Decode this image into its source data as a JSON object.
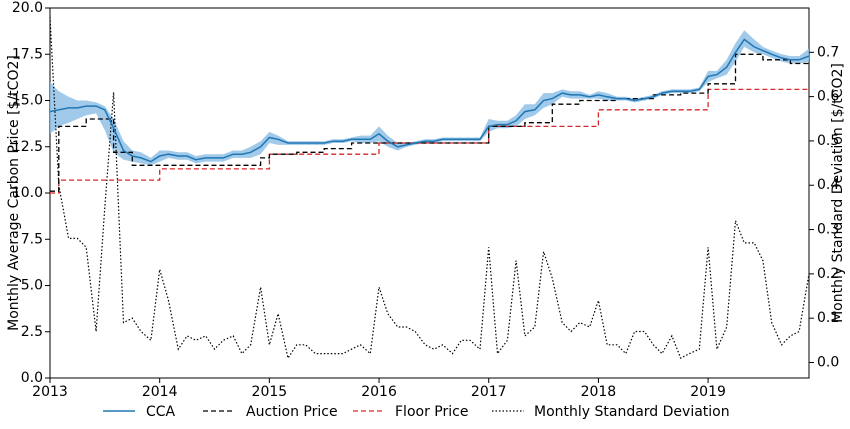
{
  "chart_data": {
    "type": "line",
    "left_axis": {
      "label": "Monthly Average Carbon Price [$/tCO2]",
      "ylim": [
        0,
        20
      ],
      "ticks": [
        0.0,
        2.5,
        5.0,
        7.5,
        10.0,
        12.5,
        15.0,
        17.5,
        20.0
      ],
      "tick_labels": [
        "0.0",
        "2.5",
        "5.0",
        "7.5",
        "10.0",
        "12.5",
        "15.0",
        "17.5",
        "20.0"
      ]
    },
    "right_axis": {
      "label": "Monthly Standard Deviation [$/tCO2]",
      "ylim": [
        -0.035,
        0.8
      ],
      "ticks": [
        0.0,
        0.1,
        0.2,
        0.3,
        0.4,
        0.5,
        0.6,
        0.7
      ],
      "tick_labels": [
        "0.0",
        "0.1",
        "0.2",
        "0.3",
        "0.4",
        "0.5",
        "0.6",
        "0.7"
      ]
    },
    "x_axis": {
      "xlim": [
        2013.0,
        2019.92
      ],
      "ticks": [
        2013,
        2014,
        2015,
        2016,
        2017,
        2018,
        2019
      ],
      "tick_labels": [
        "2013",
        "2014",
        "2015",
        "2016",
        "2017",
        "2018",
        "2019"
      ]
    },
    "grid": false,
    "legend_position": "bottom, outside plot",
    "colors": {
      "cca": "#1f77b4",
      "cca_band": "#8fbfe6",
      "auction": "#000000",
      "floor": "#d62728",
      "stddev": "#000000"
    },
    "series": [
      {
        "name": "CCA",
        "axis": "left",
        "style": "solid",
        "x": [
          2013.0,
          2013.08,
          2013.17,
          2013.25,
          2013.33,
          2013.42,
          2013.5,
          2013.58,
          2013.67,
          2013.75,
          2013.83,
          2013.92,
          2014.0,
          2014.08,
          2014.17,
          2014.25,
          2014.33,
          2014.42,
          2014.5,
          2014.58,
          2014.67,
          2014.75,
          2014.83,
          2014.92,
          2015.0,
          2015.08,
          2015.17,
          2015.25,
          2015.33,
          2015.42,
          2015.5,
          2015.58,
          2015.67,
          2015.75,
          2015.83,
          2015.92,
          2016.0,
          2016.08,
          2016.17,
          2016.25,
          2016.33,
          2016.42,
          2016.5,
          2016.58,
          2016.67,
          2016.75,
          2016.83,
          2016.92,
          2017.0,
          2017.08,
          2017.17,
          2017.25,
          2017.33,
          2017.42,
          2017.5,
          2017.58,
          2017.67,
          2017.75,
          2017.83,
          2017.92,
          2018.0,
          2018.08,
          2018.17,
          2018.25,
          2018.33,
          2018.42,
          2018.5,
          2018.58,
          2018.67,
          2018.75,
          2018.83,
          2018.92,
          2019.0,
          2019.08,
          2019.17,
          2019.25,
          2019.33,
          2019.42,
          2019.5,
          2019.58,
          2019.67,
          2019.75,
          2019.83,
          2019.92
        ],
        "values": [
          14.4,
          14.5,
          14.6,
          14.6,
          14.7,
          14.7,
          14.5,
          13.5,
          12.3,
          12.0,
          11.9,
          11.7,
          12.0,
          12.1,
          12.0,
          12.0,
          11.8,
          11.9,
          11.9,
          11.9,
          12.1,
          12.1,
          12.2,
          12.5,
          13.0,
          12.9,
          12.7,
          12.7,
          12.7,
          12.7,
          12.7,
          12.8,
          12.8,
          12.9,
          12.9,
          12.9,
          13.2,
          12.8,
          12.5,
          12.6,
          12.7,
          12.8,
          12.8,
          12.9,
          12.9,
          12.9,
          12.9,
          12.9,
          13.6,
          13.7,
          13.7,
          13.9,
          14.4,
          14.5,
          15.0,
          15.1,
          15.4,
          15.3,
          15.3,
          15.2,
          15.3,
          15.2,
          15.1,
          15.1,
          15.0,
          15.1,
          15.2,
          15.4,
          15.5,
          15.5,
          15.5,
          15.6,
          16.3,
          16.4,
          16.8,
          17.6,
          18.3,
          17.9,
          17.7,
          17.5,
          17.3,
          17.2,
          17.2,
          17.4
        ]
      },
      {
        "name": "Auction Price",
        "axis": "left",
        "style": "dashed",
        "x": [
          2013.0,
          2013.08,
          2013.17,
          2013.25,
          2013.33,
          2013.42,
          2013.5,
          2013.58,
          2013.67,
          2013.75,
          2013.83,
          2013.92,
          2014.0,
          2014.08,
          2014.17,
          2014.25,
          2014.33,
          2014.42,
          2014.5,
          2014.58,
          2014.67,
          2014.75,
          2014.83,
          2014.92,
          2015.0,
          2015.08,
          2015.17,
          2015.25,
          2015.33,
          2015.42,
          2015.5,
          2015.58,
          2015.67,
          2015.75,
          2015.83,
          2015.92,
          2016.0,
          2016.08,
          2016.17,
          2016.25,
          2016.33,
          2016.42,
          2016.5,
          2016.58,
          2016.67,
          2016.75,
          2016.83,
          2016.92,
          2017.0,
          2017.08,
          2017.17,
          2017.25,
          2017.33,
          2017.42,
          2017.5,
          2017.58,
          2017.67,
          2017.75,
          2017.83,
          2017.92,
          2018.0,
          2018.08,
          2018.17,
          2018.25,
          2018.33,
          2018.42,
          2018.5,
          2018.58,
          2018.67,
          2018.75,
          2018.83,
          2018.92,
          2019.0,
          2019.08,
          2019.17,
          2019.25,
          2019.33,
          2019.42,
          2019.5,
          2019.58,
          2019.67,
          2019.75,
          2019.83,
          2019.92
        ],
        "values": [
          10.1,
          13.6,
          13.6,
          13.6,
          14.0,
          14.0,
          14.0,
          12.2,
          12.2,
          11.5,
          11.5,
          11.5,
          11.5,
          11.5,
          11.5,
          11.5,
          11.5,
          11.5,
          11.5,
          11.5,
          11.5,
          11.5,
          11.5,
          11.9,
          12.1,
          12.1,
          12.1,
          12.2,
          12.2,
          12.2,
          12.4,
          12.4,
          12.4,
          12.7,
          12.7,
          12.7,
          12.7,
          12.7,
          12.7,
          12.7,
          12.7,
          12.7,
          12.7,
          12.7,
          12.7,
          12.7,
          12.7,
          12.7,
          13.6,
          13.6,
          13.6,
          13.6,
          13.8,
          13.8,
          13.8,
          14.8,
          14.8,
          14.8,
          15.0,
          15.0,
          15.0,
          15.0,
          15.1,
          15.1,
          15.1,
          15.1,
          15.3,
          15.3,
          15.3,
          15.4,
          15.4,
          15.4,
          15.9,
          15.9,
          15.9,
          17.5,
          17.5,
          17.5,
          17.2,
          17.2,
          17.2,
          17.0,
          17.0,
          17.0
        ]
      },
      {
        "name": "Floor Price",
        "axis": "left",
        "style": "dashed",
        "x": [
          2013.0,
          2013.08,
          2013.17,
          2013.25,
          2013.33,
          2013.42,
          2013.5,
          2013.58,
          2013.67,
          2013.75,
          2013.83,
          2013.92,
          2014.0,
          2014.08,
          2014.17,
          2014.25,
          2014.33,
          2014.42,
          2014.5,
          2014.58,
          2014.67,
          2014.75,
          2014.83,
          2014.92,
          2015.0,
          2015.08,
          2015.17,
          2015.25,
          2015.33,
          2015.42,
          2015.5,
          2015.58,
          2015.67,
          2015.75,
          2015.83,
          2015.92,
          2016.0,
          2016.08,
          2016.17,
          2016.25,
          2016.33,
          2016.42,
          2016.5,
          2016.58,
          2016.67,
          2016.75,
          2016.83,
          2016.92,
          2017.0,
          2017.08,
          2017.17,
          2017.25,
          2017.33,
          2017.42,
          2017.5,
          2017.58,
          2017.67,
          2017.75,
          2017.83,
          2017.92,
          2018.0,
          2018.08,
          2018.17,
          2018.25,
          2018.33,
          2018.42,
          2018.5,
          2018.58,
          2018.67,
          2018.75,
          2018.83,
          2018.92,
          2019.0,
          2019.08,
          2019.17,
          2019.25,
          2019.33,
          2019.42,
          2019.5,
          2019.58,
          2019.67,
          2019.75,
          2019.83,
          2019.92
        ],
        "values": [
          10.0,
          10.7,
          10.7,
          10.7,
          10.7,
          10.7,
          10.7,
          10.7,
          10.7,
          10.7,
          10.7,
          10.7,
          11.3,
          11.3,
          11.3,
          11.3,
          11.3,
          11.3,
          11.3,
          11.3,
          11.3,
          11.3,
          11.3,
          11.3,
          12.1,
          12.1,
          12.1,
          12.1,
          12.1,
          12.1,
          12.1,
          12.1,
          12.1,
          12.1,
          12.1,
          12.1,
          12.7,
          12.7,
          12.7,
          12.7,
          12.7,
          12.7,
          12.7,
          12.7,
          12.7,
          12.7,
          12.7,
          12.7,
          13.6,
          13.6,
          13.6,
          13.6,
          13.6,
          13.6,
          13.6,
          13.6,
          13.6,
          13.6,
          13.6,
          13.6,
          14.5,
          14.5,
          14.5,
          14.5,
          14.5,
          14.5,
          14.5,
          14.5,
          14.5,
          14.5,
          14.5,
          14.5,
          15.6,
          15.6,
          15.6,
          15.6,
          15.6,
          15.6,
          15.6,
          15.6,
          15.6,
          15.6,
          15.6,
          15.6
        ]
      },
      {
        "name": "Monthly Standard Deviation",
        "axis": "right",
        "style": "dotted",
        "x": [
          2013.0,
          2013.08,
          2013.17,
          2013.25,
          2013.33,
          2013.42,
          2013.5,
          2013.58,
          2013.67,
          2013.75,
          2013.83,
          2013.92,
          2014.0,
          2014.08,
          2014.17,
          2014.25,
          2014.33,
          2014.42,
          2014.5,
          2014.58,
          2014.67,
          2014.75,
          2014.83,
          2014.92,
          2015.0,
          2015.08,
          2015.17,
          2015.25,
          2015.33,
          2015.42,
          2015.5,
          2015.58,
          2015.67,
          2015.75,
          2015.83,
          2015.92,
          2016.0,
          2016.08,
          2016.17,
          2016.25,
          2016.33,
          2016.42,
          2016.5,
          2016.58,
          2016.67,
          2016.75,
          2016.83,
          2016.92,
          2017.0,
          2017.08,
          2017.17,
          2017.25,
          2017.33,
          2017.42,
          2017.5,
          2017.58,
          2017.67,
          2017.75,
          2017.83,
          2017.92,
          2018.0,
          2018.08,
          2018.17,
          2018.25,
          2018.33,
          2018.42,
          2018.5,
          2018.58,
          2018.67,
          2018.75,
          2018.83,
          2018.92,
          2019.0,
          2019.08,
          2019.17,
          2019.25,
          2019.33,
          2019.42,
          2019.5,
          2019.58,
          2019.67,
          2019.75,
          2019.83,
          2019.92
        ],
        "values": [
          0.78,
          0.4,
          0.28,
          0.28,
          0.26,
          0.07,
          0.35,
          0.61,
          0.09,
          0.1,
          0.07,
          0.05,
          0.21,
          0.14,
          0.03,
          0.06,
          0.05,
          0.06,
          0.03,
          0.05,
          0.06,
          0.02,
          0.04,
          0.17,
          0.04,
          0.11,
          0.01,
          0.04,
          0.04,
          0.02,
          0.02,
          0.02,
          0.02,
          0.03,
          0.04,
          0.02,
          0.17,
          0.11,
          0.08,
          0.08,
          0.07,
          0.04,
          0.03,
          0.04,
          0.02,
          0.05,
          0.05,
          0.03,
          0.26,
          0.02,
          0.05,
          0.23,
          0.06,
          0.08,
          0.25,
          0.19,
          0.09,
          0.07,
          0.09,
          0.08,
          0.14,
          0.04,
          0.04,
          0.02,
          0.07,
          0.07,
          0.04,
          0.02,
          0.06,
          0.01,
          0.02,
          0.03,
          0.26,
          0.03,
          0.08,
          0.32,
          0.27,
          0.27,
          0.23,
          0.09,
          0.04,
          0.06,
          0.07,
          0.2
        ]
      }
    ],
    "cca_band": {
      "x": [
        2013.0,
        2013.08,
        2013.17,
        2013.25,
        2013.33,
        2013.42,
        2013.5,
        2013.58,
        2013.67,
        2013.75,
        2013.83,
        2013.92,
        2014.0,
        2014.08,
        2014.17,
        2014.25,
        2014.33,
        2014.42,
        2014.5,
        2014.58,
        2014.67,
        2014.75,
        2014.83,
        2014.92,
        2015.0,
        2015.08,
        2015.17,
        2015.25,
        2015.33,
        2015.42,
        2015.5,
        2015.58,
        2015.67,
        2015.75,
        2015.83,
        2015.92,
        2016.0,
        2016.08,
        2016.17,
        2016.25,
        2016.33,
        2016.42,
        2016.5,
        2016.58,
        2016.67,
        2016.75,
        2016.83,
        2016.92,
        2017.0,
        2017.08,
        2017.17,
        2017.25,
        2017.33,
        2017.42,
        2017.5,
        2017.58,
        2017.67,
        2017.75,
        2017.83,
        2017.92,
        2018.0,
        2018.08,
        2018.17,
        2018.25,
        2018.33,
        2018.42,
        2018.5,
        2018.58,
        2018.67,
        2018.75,
        2018.83,
        2018.92,
        2019.0,
        2019.08,
        2019.17,
        2019.25,
        2019.33,
        2019.42,
        2019.5,
        2019.58,
        2019.67,
        2019.75,
        2019.83,
        2019.92
      ],
      "lower": [
        13.2,
        13.6,
        13.8,
        14.0,
        14.2,
        14.3,
        13.4,
        12.2,
        11.8,
        11.7,
        11.6,
        11.5,
        11.7,
        11.9,
        11.8,
        11.8,
        11.6,
        11.7,
        11.7,
        11.7,
        11.9,
        11.9,
        11.9,
        12.1,
        12.7,
        12.6,
        12.6,
        12.6,
        12.6,
        12.6,
        12.6,
        12.7,
        12.7,
        12.8,
        12.7,
        12.7,
        12.8,
        12.5,
        12.3,
        12.5,
        12.6,
        12.7,
        12.7,
        12.8,
        12.8,
        12.8,
        12.8,
        12.8,
        13.3,
        13.5,
        13.5,
        13.6,
        14.0,
        14.2,
        14.6,
        14.8,
        15.2,
        15.1,
        15.1,
        15.1,
        15.1,
        15.0,
        15.0,
        15.0,
        14.9,
        15.0,
        15.1,
        15.3,
        15.4,
        15.4,
        15.4,
        15.5,
        16.0,
        16.2,
        16.4,
        17.1,
        17.9,
        17.6,
        17.5,
        17.3,
        17.1,
        17.0,
        17.0,
        17.1
      ],
      "upper": [
        16.0,
        15.5,
        15.2,
        15.0,
        15.0,
        14.9,
        14.7,
        14.0,
        12.8,
        12.3,
        12.2,
        11.9,
        12.3,
        12.3,
        12.2,
        12.2,
        12.0,
        12.1,
        12.1,
        12.1,
        12.3,
        12.3,
        12.5,
        12.8,
        13.3,
        13.1,
        12.8,
        12.8,
        12.8,
        12.8,
        12.8,
        12.9,
        12.9,
        13.0,
        13.1,
        13.1,
        13.6,
        13.1,
        12.7,
        12.7,
        12.8,
        12.9,
        12.9,
        13.0,
        13.0,
        13.0,
        13.0,
        13.0,
        14.0,
        13.9,
        13.9,
        14.2,
        14.8,
        14.8,
        15.4,
        15.4,
        15.6,
        15.5,
        15.5,
        15.3,
        15.5,
        15.4,
        15.2,
        15.2,
        15.1,
        15.2,
        15.3,
        15.5,
        15.6,
        15.6,
        15.6,
        15.7,
        16.6,
        16.6,
        17.2,
        18.1,
        18.8,
        18.3,
        17.9,
        17.7,
        17.5,
        17.4,
        17.4,
        17.8
      ]
    }
  }
}
